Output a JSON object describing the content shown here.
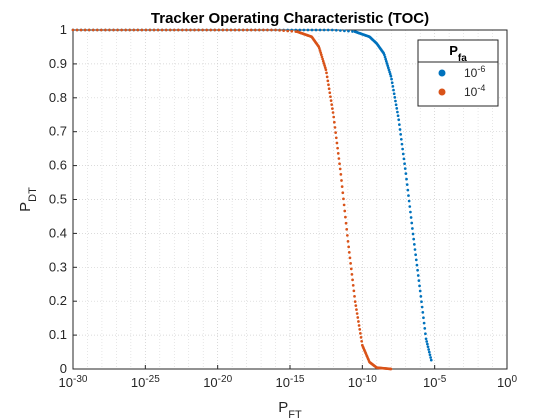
{
  "chart_data": {
    "type": "scatter",
    "title": "Tracker Operating Characteristic (TOC)",
    "xlabel": {
      "base": "P",
      "sub": "FT"
    },
    "ylabel": {
      "base": "P",
      "sub": "DT"
    },
    "x_scale": "log",
    "xlim_exp": [
      -30,
      0
    ],
    "ylim": [
      0,
      1
    ],
    "x_ticks_exp": [
      -30,
      -25,
      -20,
      -15,
      -10,
      -5,
      0
    ],
    "x_tick_base": "10",
    "y_ticks": [
      0,
      0.1,
      0.2,
      0.3,
      0.4,
      0.5,
      0.6,
      0.7,
      0.8,
      0.9,
      1
    ],
    "y_tick_labels": [
      "0",
      "0.1",
      "0.2",
      "0.3",
      "0.4",
      "0.5",
      "0.6",
      "0.7",
      "0.8",
      "0.9",
      "1"
    ],
    "grid": true,
    "minor_grid": true,
    "legend": {
      "title": {
        "base": "P",
        "sub": "fa"
      },
      "placement": "top-right"
    },
    "series": [
      {
        "name": {
          "base": "10",
          "sup": "-6"
        },
        "color": "#0072BD",
        "curve": {
          "x_start_exp": -30,
          "x_end_exp": -5.2,
          "plateau": 1.0,
          "knee_exp": -10.5,
          "end_y": 0.02
        },
        "points_log10x_y": [
          [
            -30,
            1.0
          ],
          [
            -25,
            1.0
          ],
          [
            -20,
            1.0
          ],
          [
            -15,
            1.0
          ],
          [
            -12,
            1.0
          ],
          [
            -10.5,
            0.995
          ],
          [
            -9.5,
            0.98
          ],
          [
            -9,
            0.96
          ],
          [
            -8.5,
            0.93
          ],
          [
            -8,
            0.86
          ],
          [
            -7.5,
            0.74
          ],
          [
            -7,
            0.58
          ],
          [
            -6.5,
            0.4
          ],
          [
            -6,
            0.23
          ],
          [
            -5.6,
            0.09
          ],
          [
            -5.2,
            0.02
          ]
        ]
      },
      {
        "name": {
          "base": "10",
          "sup": "-4"
        },
        "color": "#D95319",
        "curve": {
          "x_start_exp": -30,
          "x_end_exp": -8.0,
          "plateau": 1.0,
          "knee_exp": -14.5
        },
        "points_log10x_y": [
          [
            -30,
            1.0
          ],
          [
            -25,
            1.0
          ],
          [
            -20,
            1.0
          ],
          [
            -16,
            1.0
          ],
          [
            -14.5,
            0.995
          ],
          [
            -13.5,
            0.98
          ],
          [
            -13,
            0.95
          ],
          [
            -12.5,
            0.88
          ],
          [
            -12,
            0.75
          ],
          [
            -11.5,
            0.58
          ],
          [
            -11,
            0.38
          ],
          [
            -10.5,
            0.2
          ],
          [
            -10,
            0.07
          ],
          [
            -9.5,
            0.02
          ],
          [
            -9,
            0.004
          ],
          [
            -8,
            0.0
          ]
        ]
      }
    ]
  }
}
